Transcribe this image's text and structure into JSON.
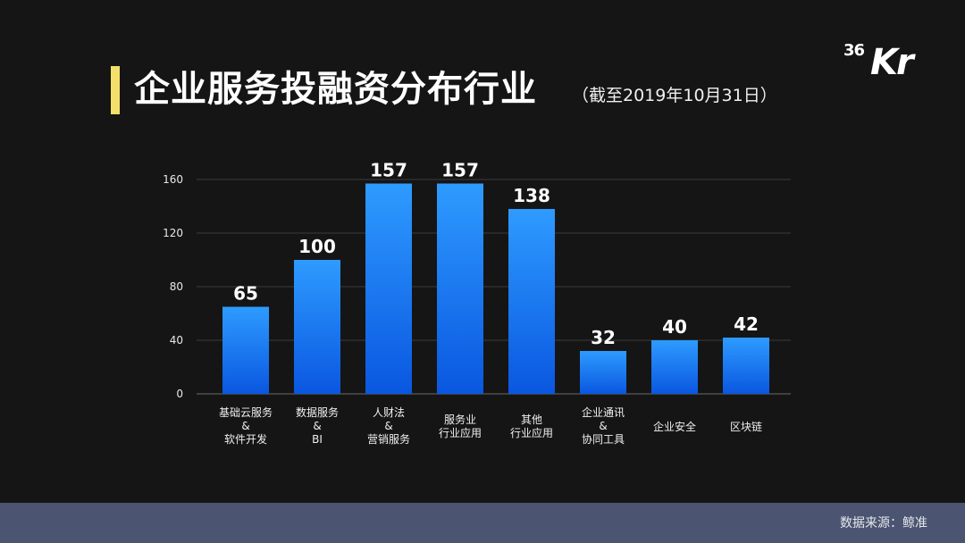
{
  "header": {
    "title": "企业服务投融资分布行业",
    "subtitle": "（截至2019年10月31日）",
    "logo_36": "36",
    "logo_kr": "Kr"
  },
  "footer": {
    "source": "数据来源：鲸准"
  },
  "colors": {
    "accent_bar": "#f4df6a",
    "bar_top": "#2e9bff",
    "bar_bottom": "#0a57e0",
    "background": "#151515",
    "footer": "#4b5470"
  },
  "chart_data": {
    "type": "bar",
    "title": "企业服务投融资分布行业",
    "categories": [
      [
        "基础云服务",
        "&",
        "软件开发"
      ],
      [
        "数据服务",
        "&",
        "BI"
      ],
      [
        "人财法",
        "&",
        "营销服务"
      ],
      [
        "服务业",
        "行业应用"
      ],
      [
        "其他",
        "行业应用"
      ],
      [
        "企业通讯",
        "&",
        "协同工具"
      ],
      [
        "企业安全"
      ],
      [
        "区块链"
      ]
    ],
    "values": [
      65,
      100,
      157,
      157,
      138,
      32,
      40,
      42
    ],
    "data_labels": [
      "65",
      "100",
      "157",
      "157",
      "138",
      "32",
      "40",
      "42"
    ],
    "yticks": [
      "0",
      "40",
      "80",
      "120",
      "160"
    ],
    "ytick_values": [
      0,
      40,
      80,
      120,
      160
    ],
    "ylim": [
      0,
      160
    ],
    "xlabel": "",
    "ylabel": "",
    "grid": true,
    "legend": "none"
  }
}
